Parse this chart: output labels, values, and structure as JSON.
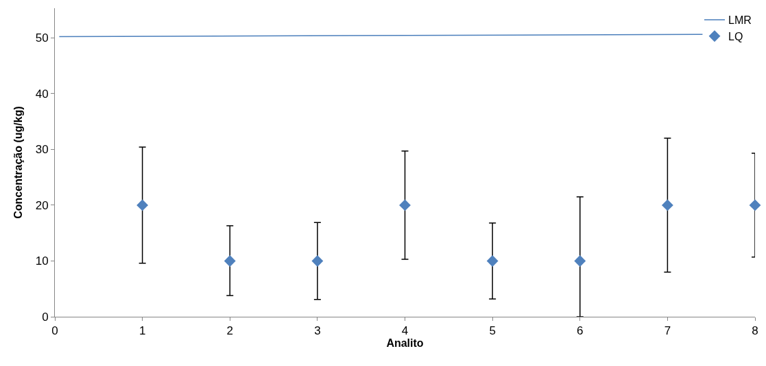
{
  "chart_data": {
    "type": "scatter",
    "xlabel": "Analito",
    "ylabel": "Concentração (ug/kg)",
    "x": [
      1,
      2,
      3,
      4,
      5,
      6,
      7,
      8
    ],
    "series": [
      {
        "name": "LMR",
        "type": "line",
        "color": "#4a7ebb",
        "x": [
          0.05,
          7.4
        ],
        "values": [
          50.2,
          50.6
        ],
        "marker": "none"
      },
      {
        "name": "LQ",
        "color": "#4f81bd",
        "values": [
          20,
          10,
          10,
          20,
          10,
          10,
          20,
          20
        ],
        "errors": [
          [
            9.6,
            30.4
          ],
          [
            3.8,
            16.3
          ],
          [
            3.1,
            16.9
          ],
          [
            10.3,
            29.7
          ],
          [
            3.2,
            16.8
          ],
          [
            0,
            21.5
          ],
          [
            8,
            32
          ],
          [
            10.7,
            29.3
          ]
        ],
        "marker": "diamond"
      }
    ],
    "xlim": [
      0,
      8
    ],
    "xticks": [
      0,
      1,
      2,
      3,
      4,
      5,
      6,
      7,
      8
    ],
    "ylim": [
      0,
      55.3
    ],
    "yticks": [
      0,
      10,
      20,
      30,
      40,
      50
    ],
    "legend": "top right"
  }
}
